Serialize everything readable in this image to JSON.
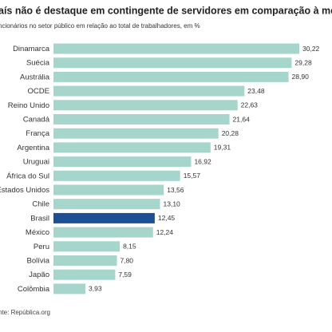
{
  "chart_data": {
    "type": "bar",
    "orientation": "horizontal",
    "title": "aís não é destaque em contingente de servidores em comparação à média glob",
    "subtitle": "ncionários no setor público em relação ao total de trabalhadores, em %",
    "source": "nte: República.org",
    "categories": [
      "Dinamarca",
      "Suécia",
      "Austrália",
      "OCDE",
      "Reino Unido",
      "Canadá",
      "França",
      "Argentina",
      "Uruguai",
      "África do Sul",
      "Estados Unidos",
      "Chile",
      "Brasil",
      "México",
      "Peru",
      "Bolívia",
      "Japão",
      "Colômbia"
    ],
    "values": [
      30.22,
      29.28,
      28.9,
      23.48,
      22.63,
      21.64,
      20.28,
      19.31,
      16.92,
      15.57,
      13.56,
      13.1,
      12.45,
      12.24,
      8.15,
      7.8,
      7.59,
      3.93
    ],
    "value_labels": [
      "30,22",
      "29,28",
      "28,90",
      "23,48",
      "22,63",
      "21,64",
      "20,28",
      "19,31",
      "16,92",
      "15,57",
      "13,56",
      "13,10",
      "12,45",
      "12,24",
      "8,15",
      "7,80",
      "7,59",
      "3,93"
    ],
    "colors": [
      "#a6d5cc",
      "#a6d5cc",
      "#a6d5cc",
      "#a6d5cc",
      "#a6d5cc",
      "#a6d5cc",
      "#a6d5cc",
      "#a6d5cc",
      "#a6d5cc",
      "#a6d5cc",
      "#a6d5cc",
      "#a6d5cc",
      "#1d4f96",
      "#a6d5cc",
      "#a6d5cc",
      "#a6d5cc",
      "#a6d5cc",
      "#a6d5cc"
    ]
  }
}
